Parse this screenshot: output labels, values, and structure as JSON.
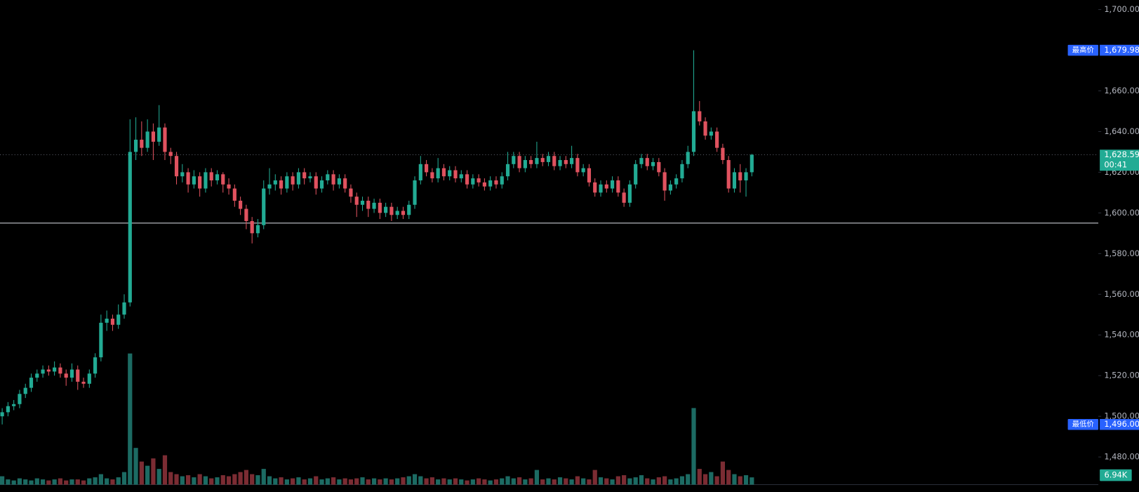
{
  "chart_data": {
    "type": "candlestick",
    "ylim": [
      1466.4,
      1704.64
    ],
    "yticks": [
      {
        "value": 1480,
        "label": "1,480.00"
      },
      {
        "value": 1500,
        "label": "1,500.00"
      },
      {
        "value": 1520,
        "label": "1,520.00"
      },
      {
        "value": 1540,
        "label": "1,540.00"
      },
      {
        "value": 1560,
        "label": "1,560.00"
      },
      {
        "value": 1580,
        "label": "1,580.00"
      },
      {
        "value": 1600,
        "label": "1,600.00"
      },
      {
        "value": 1620,
        "label": "1,620.00"
      },
      {
        "value": 1640,
        "label": "1,640.00"
      },
      {
        "value": 1660,
        "label": "1,660.00"
      },
      {
        "value": 1700,
        "label": "1,700.00"
      }
    ],
    "up_color": "#22ab94",
    "down_color": "#e0525f",
    "volume_up_color": "#1c6b63",
    "volume_down_color": "#7b2c33",
    "volume_lim": [
      0,
      180
    ],
    "candles": [
      [
        1500,
        1504,
        1496,
        1502
      ],
      [
        1502,
        1507,
        1500,
        1505
      ],
      [
        1505,
        1508,
        1503,
        1506
      ],
      [
        1506,
        1513,
        1504,
        1511
      ],
      [
        1511,
        1516,
        1509,
        1514
      ],
      [
        1514,
        1521,
        1512,
        1519
      ],
      [
        1519,
        1523,
        1517,
        1521
      ],
      [
        1521,
        1525,
        1519,
        1523
      ],
      [
        1523,
        1525,
        1520,
        1522
      ],
      [
        1522,
        1527,
        1520,
        1524
      ],
      [
        1524,
        1526,
        1519,
        1521
      ],
      [
        1521,
        1523,
        1515,
        1519
      ],
      [
        1519,
        1526,
        1517,
        1523
      ],
      [
        1523,
        1525,
        1513,
        1517
      ],
      [
        1517,
        1519,
        1514,
        1516
      ],
      [
        1516,
        1523,
        1514,
        1521
      ],
      [
        1521,
        1531,
        1519,
        1529
      ],
      [
        1529,
        1550,
        1527,
        1546
      ],
      [
        1546,
        1552,
        1542,
        1548
      ],
      [
        1548,
        1550,
        1542,
        1545
      ],
      [
        1545,
        1555,
        1543,
        1550
      ],
      [
        1550,
        1560,
        1548,
        1556
      ],
      [
        1556,
        1646,
        1554,
        1630
      ],
      [
        1630,
        1647,
        1626,
        1636
      ],
      [
        1636,
        1645,
        1628,
        1632
      ],
      [
        1632,
        1646,
        1630,
        1640
      ],
      [
        1640,
        1644,
        1626,
        1635
      ],
      [
        1635,
        1653,
        1633,
        1642
      ],
      [
        1642,
        1644,
        1626,
        1630
      ],
      [
        1630,
        1632,
        1624,
        1628
      ],
      [
        1628,
        1630,
        1614,
        1618
      ],
      [
        1618,
        1624,
        1615,
        1620
      ],
      [
        1620,
        1622,
        1610,
        1614
      ],
      [
        1614,
        1621,
        1612,
        1618
      ],
      [
        1618,
        1620,
        1608,
        1612
      ],
      [
        1612,
        1622,
        1610,
        1620
      ],
      [
        1620,
        1622,
        1613,
        1616
      ],
      [
        1616,
        1621,
        1614,
        1619
      ],
      [
        1619,
        1620,
        1610,
        1614
      ],
      [
        1614,
        1617,
        1609,
        1612
      ],
      [
        1612,
        1614,
        1603,
        1606
      ],
      [
        1606,
        1608,
        1599,
        1602
      ],
      [
        1602,
        1604,
        1592,
        1596
      ],
      [
        1596,
        1598,
        1585,
        1590
      ],
      [
        1590,
        1597,
        1588,
        1594
      ],
      [
        1594,
        1616,
        1592,
        1612
      ],
      [
        1612,
        1622,
        1609,
        1614
      ],
      [
        1614,
        1619,
        1611,
        1616
      ],
      [
        1616,
        1618,
        1609,
        1612
      ],
      [
        1612,
        1620,
        1610,
        1618
      ],
      [
        1618,
        1620,
        1611,
        1614
      ],
      [
        1614,
        1622,
        1612,
        1620
      ],
      [
        1620,
        1622,
        1614,
        1617
      ],
      [
        1617,
        1620,
        1615,
        1618
      ],
      [
        1618,
        1620,
        1609,
        1612
      ],
      [
        1612,
        1618,
        1610,
        1616
      ],
      [
        1616,
        1621,
        1614,
        1619
      ],
      [
        1619,
        1621,
        1611,
        1614
      ],
      [
        1614,
        1619,
        1612,
        1617
      ],
      [
        1617,
        1619,
        1610,
        1612
      ],
      [
        1612,
        1614,
        1605,
        1608
      ],
      [
        1608,
        1610,
        1598,
        1604
      ],
      [
        1604,
        1608,
        1601,
        1606
      ],
      [
        1606,
        1608,
        1598,
        1602
      ],
      [
        1602,
        1607,
        1600,
        1605
      ],
      [
        1605,
        1607,
        1597,
        1600
      ],
      [
        1600,
        1605,
        1598,
        1603
      ],
      [
        1603,
        1605,
        1596,
        1599
      ],
      [
        1599,
        1603,
        1597,
        1601
      ],
      [
        1601,
        1603,
        1597,
        1599
      ],
      [
        1599,
        1606,
        1597,
        1604
      ],
      [
        1604,
        1618,
        1602,
        1616
      ],
      [
        1616,
        1628,
        1614,
        1624
      ],
      [
        1624,
        1626,
        1618,
        1620
      ],
      [
        1620,
        1622,
        1615,
        1617
      ],
      [
        1617,
        1627,
        1615,
        1622
      ],
      [
        1622,
        1624,
        1616,
        1618
      ],
      [
        1618,
        1623,
        1616,
        1621
      ],
      [
        1621,
        1623,
        1615,
        1617
      ],
      [
        1617,
        1621,
        1615,
        1619
      ],
      [
        1619,
        1621,
        1612,
        1614
      ],
      [
        1614,
        1619,
        1612,
        1617
      ],
      [
        1617,
        1619,
        1613,
        1615
      ],
      [
        1615,
        1617,
        1611,
        1613
      ],
      [
        1613,
        1618,
        1611,
        1616
      ],
      [
        1616,
        1618,
        1612,
        1614
      ],
      [
        1614,
        1620,
        1612,
        1618
      ],
      [
        1618,
        1630,
        1616,
        1624
      ],
      [
        1624,
        1630,
        1622,
        1628
      ],
      [
        1628,
        1630,
        1620,
        1622
      ],
      [
        1622,
        1628,
        1620,
        1626
      ],
      [
        1626,
        1628,
        1622,
        1624
      ],
      [
        1624,
        1635,
        1622,
        1627
      ],
      [
        1627,
        1629,
        1623,
        1625
      ],
      [
        1625,
        1630,
        1623,
        1628
      ],
      [
        1628,
        1630,
        1621,
        1623
      ],
      [
        1623,
        1628,
        1621,
        1626
      ],
      [
        1626,
        1628,
        1622,
        1624
      ],
      [
        1624,
        1633,
        1622,
        1627
      ],
      [
        1627,
        1629,
        1618,
        1620
      ],
      [
        1620,
        1624,
        1618,
        1622
      ],
      [
        1622,
        1624,
        1613,
        1615
      ],
      [
        1615,
        1617,
        1608,
        1610
      ],
      [
        1610,
        1616,
        1608,
        1614
      ],
      [
        1614,
        1616,
        1610,
        1612
      ],
      [
        1612,
        1618,
        1610,
        1616
      ],
      [
        1616,
        1618,
        1608,
        1610
      ],
      [
        1610,
        1612,
        1603,
        1605
      ],
      [
        1605,
        1616,
        1603,
        1614
      ],
      [
        1614,
        1626,
        1612,
        1624
      ],
      [
        1624,
        1629,
        1622,
        1627
      ],
      [
        1627,
        1629,
        1621,
        1623
      ],
      [
        1623,
        1627,
        1621,
        1625
      ],
      [
        1625,
        1627,
        1618,
        1620
      ],
      [
        1620,
        1622,
        1606,
        1611
      ],
      [
        1611,
        1616,
        1609,
        1614
      ],
      [
        1614,
        1619,
        1612,
        1617
      ],
      [
        1617,
        1626,
        1615,
        1624
      ],
      [
        1624,
        1633,
        1622,
        1630
      ],
      [
        1630,
        1679.98,
        1628,
        1650
      ],
      [
        1650,
        1655,
        1643,
        1645
      ],
      [
        1645,
        1647,
        1636,
        1638
      ],
      [
        1638,
        1642,
        1636,
        1640
      ],
      [
        1640,
        1642,
        1630,
        1632
      ],
      [
        1632,
        1634,
        1624,
        1626
      ],
      [
        1626,
        1628,
        1610,
        1612
      ],
      [
        1612,
        1622,
        1610,
        1620
      ],
      [
        1620,
        1624,
        1610,
        1616
      ],
      [
        1616,
        1622,
        1608,
        1620
      ],
      [
        1620,
        1629,
        1618,
        1628.59
      ]
    ],
    "volumes": [
      8,
      5,
      4,
      6,
      5,
      4,
      6,
      5,
      4,
      5,
      6,
      4,
      5,
      5,
      4,
      6,
      7,
      10,
      6,
      5,
      7,
      12,
      125,
      35,
      22,
      18,
      25,
      15,
      28,
      12,
      10,
      8,
      9,
      7,
      10,
      8,
      6,
      7,
      9,
      8,
      10,
      12,
      14,
      10,
      9,
      15,
      8,
      6,
      7,
      5,
      6,
      7,
      5,
      6,
      8,
      5,
      6,
      7,
      5,
      6,
      5,
      6,
      7,
      5,
      6,
      5,
      6,
      5,
      6,
      7,
      8,
      10,
      8,
      6,
      7,
      5,
      6,
      5,
      6,
      5,
      4,
      5,
      6,
      5,
      4,
      5,
      6,
      8,
      6,
      7,
      5,
      6,
      14,
      5,
      6,
      5,
      7,
      6,
      5,
      8,
      6,
      5,
      14,
      7,
      6,
      5,
      8,
      9,
      6,
      7,
      9,
      6,
      5,
      7,
      8,
      5,
      6,
      8,
      10,
      73,
      15,
      10,
      12,
      8,
      22,
      14,
      10,
      8,
      9,
      6.94
    ],
    "last_volume_label": "6.94K",
    "high_marker": {
      "label": "最高价",
      "value": 1679.98,
      "value_label": "1,679.98"
    },
    "low_marker": {
      "label": "最低价",
      "value": 1496.0,
      "value_label": "1,496.00"
    },
    "last_price": {
      "value": 1628.59,
      "value_label": "1,628.59",
      "countdown": "00:41"
    },
    "horizontal_line": {
      "value": 1595
    }
  }
}
